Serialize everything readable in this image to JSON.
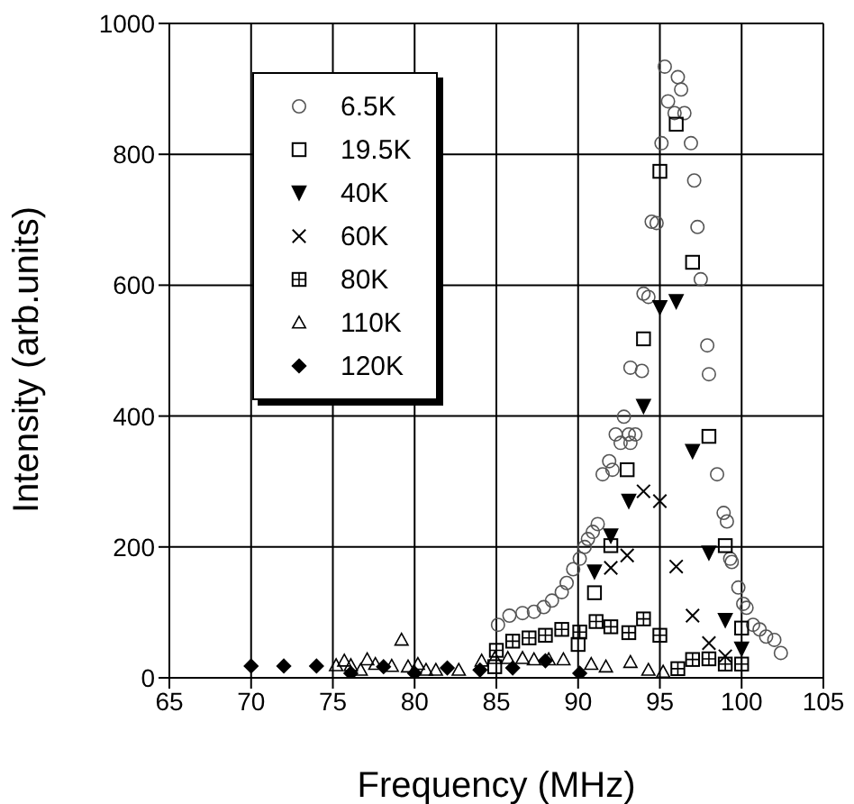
{
  "chart_data": {
    "type": "scatter",
    "xlabel": "Frequency  (MHz)",
    "ylabel": "Intensity (arb.units)",
    "xlim": [
      65,
      105
    ],
    "xticks": [
      65,
      70,
      75,
      80,
      85,
      90,
      95,
      100,
      105
    ],
    "ylim": [
      0,
      1000
    ],
    "yticks": [
      0,
      200,
      400,
      600,
      800,
      1000
    ],
    "grid": true,
    "legend": "top left",
    "series": [
      {
        "name": "6.5K",
        "color": "#555555",
        "marker": "circle",
        "x": [
          85.1,
          85.8,
          86.6,
          87.3,
          87.9,
          88.4,
          89.0,
          89.3,
          89.7,
          90.1,
          90.4,
          90.6,
          90.9,
          91.2,
          91.5,
          91.9,
          92.1,
          92.3,
          92.6,
          92.8,
          93.1,
          93.2,
          93.2,
          93.5,
          93.9,
          94.0,
          94.3,
          94.5,
          94.8,
          95.1,
          95.3,
          95.5,
          95.9,
          96.1,
          96.3,
          96.5,
          96.9,
          97.1,
          97.3,
          97.5,
          97.9,
          98.0,
          98.5,
          98.9,
          99.1,
          99.3,
          99.4,
          99.8,
          100.1,
          100.3,
          100.7,
          101.1,
          101.5,
          102.0,
          102.4
        ],
        "values": [
          81,
          95,
          99,
          101,
          108,
          118,
          131,
          145,
          166,
          182,
          200,
          212,
          223,
          235,
          311,
          331,
          318,
          372,
          359,
          399,
          372,
          359,
          474,
          372,
          469,
          587,
          582,
          697,
          695,
          817,
          934,
          881,
          863,
          918,
          899,
          863,
          817,
          760,
          689,
          609,
          508,
          464,
          311,
          252,
          239,
          182,
          177,
          138,
          113,
          107,
          81,
          74,
          63,
          58,
          38
        ]
      },
      {
        "name": "19.5K",
        "color": "#000000",
        "marker": "square",
        "x": [
          84.9,
          90.0,
          91.0,
          92.0,
          93.0,
          94.0,
          95.0,
          96.0,
          97.0,
          98.0,
          99.0,
          100.0
        ],
        "values": [
          17,
          51,
          130,
          202,
          318,
          518,
          774,
          846,
          635,
          369,
          202,
          76
        ]
      },
      {
        "name": "40K",
        "color": "#000000",
        "marker": "triangle-down",
        "x": [
          91.0,
          92.0,
          93.1,
          94.0,
          95.0,
          96.0,
          97.0,
          98.0,
          99.0,
          100.0
        ],
        "values": [
          162,
          217,
          270,
          415,
          566,
          575,
          346,
          191,
          88,
          44
        ]
      },
      {
        "name": "60K",
        "color": "#000000",
        "marker": "cross",
        "x": [
          92.0,
          93.0,
          94.0,
          95.0,
          96.0,
          97.0,
          98.0,
          99.0
        ],
        "values": [
          168,
          187,
          285,
          270,
          170,
          95,
          53,
          33
        ]
      },
      {
        "name": "80K",
        "color": "#000000",
        "marker": "square-plus",
        "x": [
          85.0,
          86.0,
          87.0,
          88.0,
          89.0,
          90.1,
          91.1,
          92.0,
          93.1,
          94.0,
          95.0,
          96.1,
          97.0,
          98.0,
          99.0,
          100.0
        ],
        "values": [
          42,
          56,
          61,
          65,
          74,
          70,
          86,
          78,
          69,
          90,
          65,
          14,
          28,
          29,
          21,
          21
        ]
      },
      {
        "name": "110K",
        "color": "#000000",
        "marker": "triangle",
        "x": [
          75.2,
          75.7,
          76.1,
          76.7,
          77.1,
          77.6,
          78.6,
          79.2,
          79.6,
          80.2,
          80.7,
          81.3,
          82.7,
          84.1,
          84.9,
          85.7,
          86.6,
          87.3,
          88.2,
          89.1,
          90.8,
          91.7,
          93.2,
          94.3,
          95.2
        ],
        "values": [
          19,
          26,
          19,
          12,
          28,
          21,
          18,
          58,
          17,
          21,
          12,
          12,
          12,
          26,
          30,
          30,
          30,
          28,
          28,
          28,
          21,
          17,
          24,
          12,
          9
        ]
      },
      {
        "name": "120K",
        "color": "#000000",
        "marker": "diamond",
        "x": [
          70.0,
          72.0,
          74.0,
          76.1,
          78.1,
          80.0,
          82.0,
          84.0,
          86.0,
          88.0,
          90.1
        ],
        "values": [
          18,
          18,
          18,
          7,
          17,
          7,
          15,
          12,
          15,
          26,
          7
        ]
      }
    ]
  }
}
